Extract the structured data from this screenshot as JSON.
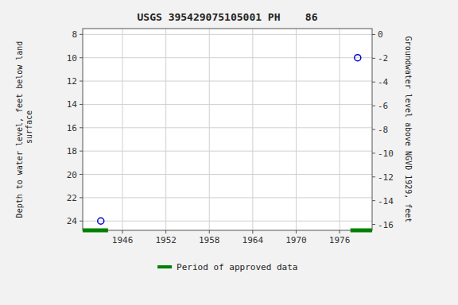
{
  "chart_data": {
    "type": "scatter",
    "title": "USGS 395429075105001 PH    86",
    "y_label": "Depth to water level, feet below land\n surface",
    "y2_label": "Groundwater level above NGVD 1929, feet",
    "xlim": [
      1940.5,
      1980.5
    ],
    "xticks": [
      1946,
      1952,
      1958,
      1964,
      1970,
      1976
    ],
    "ylim": [
      24.8,
      7.5
    ],
    "yticks": [
      8,
      10,
      12,
      14,
      16,
      18,
      20,
      22,
      24
    ],
    "y2lim": [
      -16.5,
      0.5
    ],
    "y2ticks": [
      0,
      -2,
      -4,
      -6,
      -8,
      -10,
      -12,
      -14,
      -16
    ],
    "grid": true,
    "legend": "bottom",
    "series": [
      {
        "type": "scatter",
        "color": "#0000cc",
        "marker": "open-circle",
        "x": [
          1943.0,
          1978.5
        ],
        "values": [
          24.0,
          10.0
        ]
      },
      {
        "name": "Period of approved data",
        "type": "line",
        "color": "#008000",
        "x": [
          1940.5,
          1944.0,
          null,
          1977.5,
          1980.5
        ],
        "values": [
          24.8,
          24.8,
          null,
          24.8,
          24.8
        ]
      }
    ]
  }
}
